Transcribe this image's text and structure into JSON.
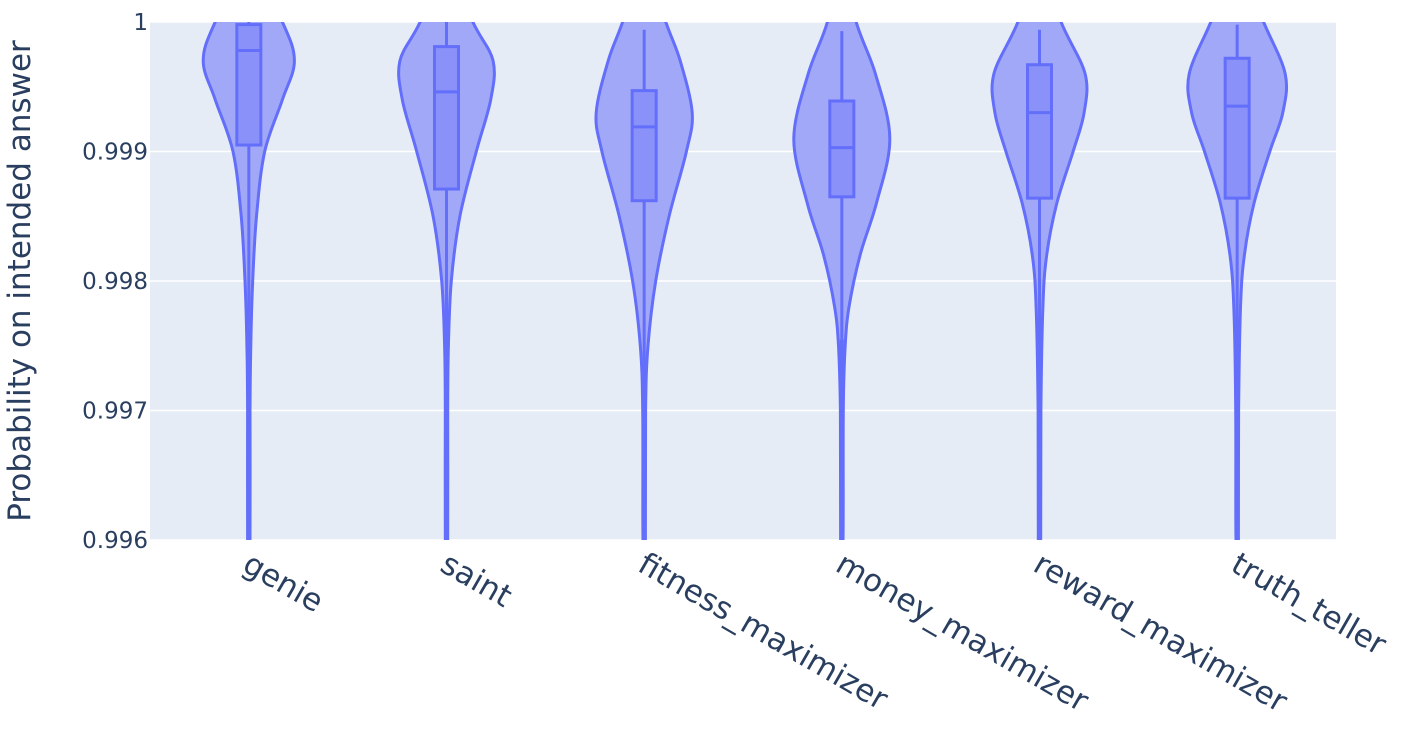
{
  "chart_data": {
    "type": "violin",
    "categories": [
      "genie",
      "saint",
      "fitness_maximizer",
      "money_maximizer",
      "reward_maximizer",
      "truth_teller"
    ],
    "xlabel": "",
    "ylabel": "Probability on intended answer",
    "ylim": [
      0.996,
      1
    ],
    "yticks": [
      {
        "value": 0.996,
        "label": "0.996"
      },
      {
        "value": 0.997,
        "label": "0.997"
      },
      {
        "value": 0.998,
        "label": "0.998"
      },
      {
        "value": 0.999,
        "label": "0.999"
      },
      {
        "value": 1,
        "label": "1"
      }
    ],
    "grid": true,
    "box_overlay": true,
    "colors": {
      "line": "#636efa",
      "violin_fill": "#a2a8f8",
      "box_fill": "#8a92fa",
      "plot_bg": "#e5ecf6",
      "grid": "#ffffff",
      "text": "#2a3f5f"
    },
    "series": [
      {
        "q1": 0.99905,
        "median": 0.99978,
        "q3": 0.99998,
        "whisker_low": 0.99765,
        "whisker_high": 1.0,
        "min": 0.996,
        "max": 1.0,
        "density": [
          [
            1.0005,
            0.0
          ],
          [
            1.0,
            0.7
          ],
          [
            0.9997,
            0.95
          ],
          [
            0.9994,
            0.7
          ],
          [
            0.999,
            0.33
          ],
          [
            0.9985,
            0.16
          ],
          [
            0.998,
            0.08
          ],
          [
            0.9975,
            0.04
          ],
          [
            0.997,
            0.025
          ],
          [
            0.996,
            0.025
          ]
        ]
      },
      {
        "q1": 0.99871,
        "median": 0.99946,
        "q3": 0.99981,
        "whisker_low": 0.996,
        "whisker_high": 1.0,
        "min": 0.996,
        "max": 1.0,
        "density": [
          [
            1.0005,
            0.0
          ],
          [
            1.0,
            0.55
          ],
          [
            0.9997,
            0.97
          ],
          [
            0.9994,
            0.92
          ],
          [
            0.999,
            0.62
          ],
          [
            0.9985,
            0.28
          ],
          [
            0.998,
            0.1
          ],
          [
            0.9975,
            0.04
          ],
          [
            0.997,
            0.025
          ],
          [
            0.996,
            0.025
          ]
        ]
      },
      {
        "q1": 0.99862,
        "median": 0.99919,
        "q3": 0.99947,
        "whisker_low": 0.99737,
        "whisker_high": 0.99994,
        "min": 0.996,
        "max": 1.0,
        "density": [
          [
            1.0005,
            0.0
          ],
          [
            1.0,
            0.45
          ],
          [
            0.9997,
            0.75
          ],
          [
            0.9993,
            1.0
          ],
          [
            0.999,
            0.88
          ],
          [
            0.9985,
            0.52
          ],
          [
            0.998,
            0.24
          ],
          [
            0.9975,
            0.08
          ],
          [
            0.997,
            0.03
          ],
          [
            0.996,
            0.025
          ]
        ]
      },
      {
        "q1": 0.99865,
        "median": 0.99903,
        "q3": 0.99939,
        "whisker_low": 0.99755,
        "whisker_high": 0.99993,
        "min": 0.996,
        "max": 1.0,
        "density": [
          [
            1.0005,
            0.0
          ],
          [
            1.0,
            0.3
          ],
          [
            0.9996,
            0.7
          ],
          [
            0.9991,
            1.0
          ],
          [
            0.9986,
            0.72
          ],
          [
            0.9982,
            0.38
          ],
          [
            0.9978,
            0.15
          ],
          [
            0.9975,
            0.07
          ],
          [
            0.997,
            0.03
          ],
          [
            0.996,
            0.025
          ]
        ]
      },
      {
        "q1": 0.99864,
        "median": 0.9993,
        "q3": 0.99967,
        "whisker_low": 0.99712,
        "whisker_high": 0.99994,
        "min": 0.996,
        "max": 1.0,
        "density": [
          [
            1.0005,
            0.0
          ],
          [
            1.0,
            0.45
          ],
          [
            0.9996,
            0.95
          ],
          [
            0.9993,
            0.93
          ],
          [
            0.999,
            0.7
          ],
          [
            0.9986,
            0.36
          ],
          [
            0.9982,
            0.15
          ],
          [
            0.9978,
            0.07
          ],
          [
            0.997,
            0.03
          ],
          [
            0.996,
            0.025
          ]
        ]
      },
      {
        "q1": 0.99864,
        "median": 0.99935,
        "q3": 0.99972,
        "whisker_low": 0.99707,
        "whisker_high": 0.99998,
        "min": 0.996,
        "max": 1.0,
        "density": [
          [
            1.0005,
            0.0
          ],
          [
            1.0,
            0.55
          ],
          [
            0.9996,
            1.0
          ],
          [
            0.9993,
            0.95
          ],
          [
            0.999,
            0.68
          ],
          [
            0.9986,
            0.35
          ],
          [
            0.9982,
            0.15
          ],
          [
            0.9978,
            0.07
          ],
          [
            0.997,
            0.03
          ],
          [
            0.996,
            0.025
          ]
        ]
      }
    ]
  }
}
